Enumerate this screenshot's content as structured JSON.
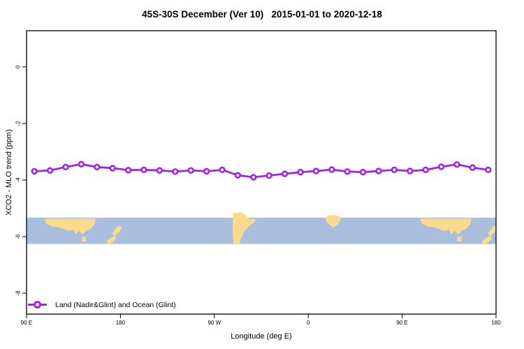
{
  "title": "45S-30S December (Ver 10)   2015-01-01 to 2020-12-18",
  "y_axis": {
    "label": "XCO2 - MLO trend (ppm)"
  },
  "x_axis": {
    "label": "Longitude (deg E)"
  },
  "legend": {
    "series_label": "Land (Nadir&Glint) and Ocean (Glint)"
  },
  "colors": {
    "line": "#a020f0",
    "marker_fill": "#ffffff",
    "ocean": "#a9bedc",
    "land": "#fbd98d",
    "axis": "#000000",
    "background": "#ffffff"
  },
  "chart_data": {
    "type": "line",
    "title": "45S-30S December (Ver 10)   2015-01-01 to 2020-12-18",
    "xlabel": "Longitude (deg E)",
    "ylabel": "XCO2 - MLO trend (ppm)",
    "xlim": [
      90,
      540
    ],
    "ylim": [
      -8.74,
      1.28
    ],
    "x_ticks": [
      {
        "value": 90,
        "label": "90 E"
      },
      {
        "value": 180,
        "label": "180"
      },
      {
        "value": 270,
        "label": "90 W"
      },
      {
        "value": 360,
        "label": "0"
      },
      {
        "value": 450,
        "label": "90 E"
      },
      {
        "value": 540,
        "label": "180"
      }
    ],
    "y_ticks": [
      {
        "value": 0,
        "label": "0"
      },
      {
        "value": -2,
        "label": "-2"
      },
      {
        "value": -4,
        "label": "-4"
      },
      {
        "value": -6,
        "label": "-6"
      },
      {
        "value": -8,
        "label": "-8"
      }
    ],
    "x": [
      97.5,
      112.5,
      127.5,
      142.5,
      157.5,
      172.5,
      187.5,
      202.5,
      217.5,
      232.5,
      247.5,
      262.5,
      277.5,
      292.5,
      307.5,
      322.5,
      337.5,
      352.5,
      367.5,
      382.5,
      397.5,
      412.5,
      427.5,
      442.5,
      457.5,
      472.5,
      487.5,
      502.5,
      517.5,
      532.5
    ],
    "series": [
      {
        "name": "Land (Nadir&Glint) and Ocean (Glint)",
        "marker": "open-circle",
        "color": "#a020f0",
        "values": [
          -3.69,
          -3.66,
          -3.54,
          -3.44,
          -3.54,
          -3.58,
          -3.65,
          -3.64,
          -3.66,
          -3.7,
          -3.66,
          -3.69,
          -3.64,
          -3.83,
          -3.9,
          -3.84,
          -3.78,
          -3.72,
          -3.68,
          -3.63,
          -3.7,
          -3.72,
          -3.68,
          -3.64,
          -3.68,
          -3.64,
          -3.53,
          -3.45,
          -3.56,
          -3.64
        ]
      }
    ],
    "map_band": {
      "description": "world map strip for latitude band 45S-30S",
      "lat_range": "45S-30S",
      "y_top_value": -5.33,
      "y_bottom_value": -6.26
    },
    "grid": "off",
    "legend_position": "bottom-left-inside"
  }
}
